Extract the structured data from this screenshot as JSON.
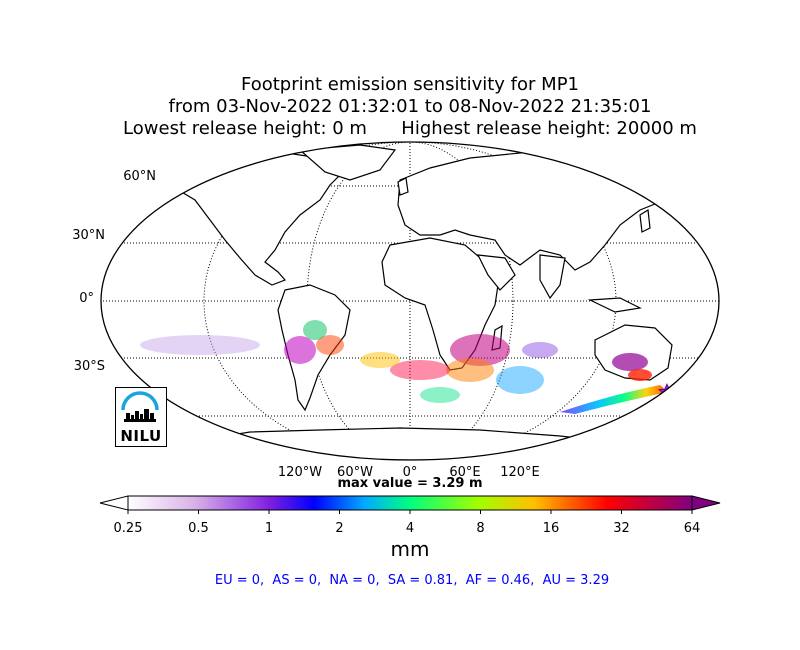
{
  "title": {
    "line1": "Footprint emission sensitivity for MP1",
    "line2": "from 03-Nov-2022 01:32:01 to 08-Nov-2022 21:35:01",
    "line3_left": "Lowest release height: 0 m",
    "line3_right": "Highest release height: 20000 m"
  },
  "map": {
    "lat_labels": [
      "60°N",
      "30°N",
      "0°",
      "30°S"
    ],
    "lon_labels": [
      "120°W",
      "60°W",
      "0°",
      "60°E",
      "120°E"
    ],
    "release_marker": "star-icon",
    "colors": {
      "land_outline": "#000000",
      "ocean": "#ffffff",
      "star": "#a020f0"
    }
  },
  "max_value_label": "max value = 3.29 m",
  "colorbar": {
    "ticks": [
      "0.25",
      "0.5",
      "1",
      "2",
      "4",
      "8",
      "16",
      "32",
      "64"
    ],
    "units": "mm",
    "colors": [
      "#ffffff",
      "#d8b0e8",
      "#a030e0",
      "#0000ff",
      "#00aaff",
      "#00ff80",
      "#a0ff00",
      "#ffc000",
      "#ff0000",
      "#800080"
    ]
  },
  "region_values": "EU = 0,  AS = 0,  NA = 0,  SA = 0.81,  AF = 0.46,  AU = 3.29",
  "logo": {
    "text": "NILU",
    "color": "#1aa3e0"
  }
}
